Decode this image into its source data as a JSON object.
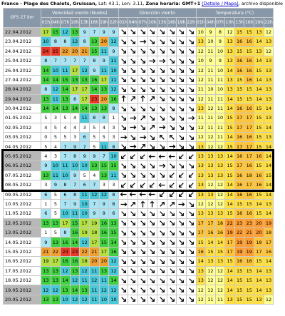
{
  "header": {
    "place": "France - Plage des Chalets, Gruissan,",
    "lat": "Lat: 43.1,",
    "lon": "Lon: 3.11,",
    "timezone": "Zona horaria: GMT+1",
    "links": "[Detalle / Mapa]",
    "file": ", archivo disponible"
  },
  "table": {
    "model": "GFS 27 km",
    "groups": [
      "Velocidad viento (Nudos)",
      "Dirección viento",
      "Temperatura (°C)"
    ],
    "hours": [
      "01h",
      "04h",
      "07h",
      "10h",
      "13h",
      "16h",
      "19h",
      "22h"
    ],
    "rows": [
      {
        "date": "22.04.2012",
        "wind": [
          17,
          15,
          12,
          13,
          9,
          7,
          9,
          9
        ],
        "dir": [
          135,
          135,
          135,
          135,
          135,
          135,
          135,
          135
        ],
        "temp": [
          10,
          9,
          8,
          12,
          15,
          15,
          13,
          12
        ]
      },
      {
        "date": "23.04.2012",
        "wind": [
          10,
          8,
          8,
          12,
          8,
          13,
          20,
          12
        ],
        "dir": [
          135,
          135,
          90,
          135,
          135,
          135,
          135,
          135
        ],
        "temp": [
          13,
          10,
          9,
          13,
          16,
          16,
          14,
          13
        ]
      },
      {
        "date": "24.04.2012",
        "wind": [
          24,
          25,
          22,
          20,
          21,
          15,
          11,
          9
        ],
        "dir": [
          135,
          135,
          135,
          135,
          135,
          135,
          135,
          135
        ],
        "temp": [
          12,
          11,
          10,
          13,
          15,
          15,
          13,
          12
        ]
      },
      {
        "date": "25.04.2012",
        "wind": [
          8,
          7,
          7,
          7,
          7,
          8,
          9,
          11
        ],
        "dir": [
          135,
          135,
          135,
          90,
          90,
          135,
          135,
          135
        ],
        "temp": [
          10,
          9,
          9,
          13,
          16,
          16,
          14,
          13
        ]
      },
      {
        "date": "26.04.2012",
        "wind": [
          14,
          10,
          11,
          17,
          12,
          9,
          11,
          10
        ],
        "dir": [
          135,
          135,
          135,
          135,
          135,
          135,
          135,
          135
        ],
        "temp": [
          12,
          11,
          10,
          14,
          16,
          16,
          15,
          13
        ]
      },
      {
        "date": "27.04.2012",
        "wind": [
          14,
          14,
          15,
          13,
          13,
          16,
          17,
          11
        ],
        "dir": [
          135,
          135,
          135,
          135,
          135,
          135,
          135,
          135
        ],
        "temp": [
          12,
          11,
          11,
          13,
          15,
          16,
          14,
          13
        ]
      },
      {
        "date": "28.04.2012",
        "wind": [
          8,
          12,
          14,
          17,
          17,
          14,
          13,
          12
        ],
        "dir": [
          135,
          135,
          135,
          135,
          135,
          135,
          135,
          135
        ],
        "temp": [
          11,
          10,
          10,
          13,
          15,
          15,
          14,
          13
        ]
      },
      {
        "date": "29.04.2012",
        "wind": [
          13,
          11,
          13,
          8,
          17,
          23,
          20,
          16
        ],
        "dir": [
          0,
          45,
          0,
          45,
          135,
          135,
          135,
          135
        ],
        "temp": [
          12,
          11,
          11,
          14,
          15,
          15,
          14,
          13
        ]
      },
      {
        "date": "30.04.2012",
        "wind": [
          14,
          14,
          13,
          14,
          14,
          13,
          13,
          8
        ],
        "dir": [
          135,
          135,
          135,
          135,
          135,
          135,
          135,
          135
        ],
        "temp": [
          13,
          12,
          11,
          14,
          16,
          16,
          15,
          14
        ]
      },
      {
        "date": "01.05.2012",
        "wind": [
          5,
          3,
          5,
          4,
          11,
          8,
          8,
          1
        ],
        "dir": [
          135,
          90,
          45,
          135,
          135,
          135,
          135,
          90
        ],
        "temp": [
          11,
          11,
          10,
          15,
          17,
          17,
          15,
          13
        ]
      },
      {
        "date": "02.05.2012",
        "wind": [
          4,
          5,
          4,
          4,
          3,
          5,
          4,
          3
        ],
        "dir": [
          135,
          90,
          135,
          45,
          90,
          135,
          135,
          135
        ],
        "temp": [
          12,
          11,
          11,
          15,
          17,
          17,
          15,
          14
        ]
      },
      {
        "date": "03.05.2012",
        "wind": [
          0,
          5,
          5,
          3,
          6,
          5,
          5,
          3
        ],
        "dir": [
          90,
          135,
          90,
          135,
          315,
          315,
          135,
          135
        ],
        "temp": [
          12,
          12,
          11,
          14,
          16,
          16,
          15,
          13
        ]
      },
      {
        "date": "04.05.2012",
        "wind": [
          5,
          4,
          7,
          9,
          7,
          5,
          11,
          8
        ],
        "dir": [
          135,
          90,
          45,
          135,
          135,
          90,
          135,
          135
        ],
        "temp": [
          13,
          12,
          12,
          15,
          17,
          17,
          15,
          14
        ]
      },
      {
        "date": "05.05.2012",
        "wind": [
          4,
          3,
          7,
          8,
          9,
          9,
          7,
          10
        ],
        "dir": [
          225,
          225,
          225,
          270,
          270,
          270,
          225,
          225
        ],
        "temp": [
          13,
          13,
          13,
          14,
          16,
          17,
          16,
          14
        ]
      },
      {
        "date": "06.05.2012",
        "wind": [
          9,
          10,
          11,
          10,
          10,
          13,
          15,
          15
        ],
        "dir": [
          135,
          135,
          135,
          135,
          90,
          135,
          135,
          135
        ],
        "temp": [
          13,
          13,
          13,
          15,
          17,
          16,
          15,
          14
        ]
      },
      {
        "date": "07.05.2012",
        "wind": [
          13,
          11,
          10,
          9,
          5,
          4,
          13,
          11
        ],
        "dir": [
          135,
          135,
          135,
          135,
          135,
          225,
          225,
          225
        ],
        "temp": [
          13,
          13,
          13,
          15,
          16,
          18,
          16,
          15
        ]
      },
      {
        "date": "08.05.2012",
        "wind": [
          3,
          9,
          8,
          7,
          6,
          7,
          3,
          3
        ],
        "dir": [
          225,
          225,
          225,
          225,
          270,
          225,
          225,
          225
        ],
        "temp": [
          13,
          12,
          12,
          14,
          16,
          17,
          16,
          14
        ]
      },
      {
        "date": "09.05.2012",
        "wind": [
          6,
          5,
          6,
          8,
          11,
          12,
          12,
          8
        ],
        "dir": [
          270,
          270,
          270,
          270,
          225,
          225,
          225,
          225
        ],
        "temp": [
          13,
          13,
          12,
          14,
          16,
          16,
          15,
          14
        ]
      },
      {
        "date": "10.05.2012",
        "wind": [
          1,
          5,
          7,
          9,
          10,
          7,
          9,
          8
        ],
        "dir": [
          90,
          45,
          0,
          0,
          45,
          45,
          90,
          135
        ],
        "temp": [
          12,
          12,
          12,
          14,
          15,
          15,
          14,
          13
        ]
      },
      {
        "date": "11.05.2012",
        "wind": [
          6,
          5,
          10,
          11,
          10,
          9,
          9,
          6
        ],
        "dir": [
          135,
          135,
          135,
          135,
          135,
          135,
          135,
          135
        ],
        "temp": [
          13,
          13,
          13,
          15,
          16,
          16,
          15,
          14
        ]
      },
      {
        "date": "12.05.2012",
        "wind": [
          13,
          13,
          17,
          15,
          17,
          19,
          16,
          13
        ],
        "dir": [
          135,
          135,
          135,
          135,
          135,
          135,
          135,
          135
        ],
        "temp": [
          17,
          17,
          18,
          22,
          23,
          23,
          20,
          19
        ]
      },
      {
        "date": "13.05.2012",
        "wind": [
          1,
          5,
          8,
          16,
          19,
          18,
          16,
          15
        ],
        "dir": [
          135,
          135,
          135,
          135,
          135,
          135,
          135,
          135
        ],
        "temp": [
          17,
          16,
          16,
          19,
          22,
          21,
          20,
          18
        ]
      },
      {
        "date": "14.05.2012",
        "wind": [
          9,
          13,
          16,
          14,
          12,
          17,
          15,
          14
        ],
        "dir": [
          135,
          135,
          135,
          135,
          135,
          135,
          135,
          135
        ],
        "temp": [
          15,
          14,
          14,
          17,
          19,
          19,
          18,
          17
        ]
      },
      {
        "date": "15.05.2012",
        "wind": [
          21,
          22,
          24,
          23,
          22,
          21,
          17,
          16
        ],
        "dir": [
          135,
          135,
          135,
          135,
          135,
          135,
          135,
          135
        ],
        "temp": [
          16,
          15,
          15,
          17,
          19,
          19,
          17,
          16
        ]
      },
      {
        "date": "16.05.2012",
        "wind": [
          19,
          17,
          16,
          16,
          18,
          20,
          20,
          12
        ],
        "dir": [
          135,
          135,
          135,
          135,
          135,
          135,
          135,
          135
        ],
        "temp": [
          14,
          13,
          13,
          15,
          16,
          16,
          15,
          14
        ]
      },
      {
        "date": "17.05.2012",
        "wind": [
          13,
          13,
          12,
          13,
          12,
          11,
          13,
          12
        ],
        "dir": [
          135,
          135,
          135,
          135,
          135,
          135,
          135,
          135
        ],
        "temp": [
          13,
          12,
          12,
          14,
          15,
          15,
          14,
          13
        ]
      },
      {
        "date": "18.05.2012",
        "wind": [
          13,
          13,
          14,
          12,
          11,
          12,
          11,
          14
        ],
        "dir": [
          135,
          135,
          135,
          135,
          135,
          135,
          135,
          135
        ],
        "temp": [
          13,
          12,
          12,
          14,
          15,
          15,
          14,
          13
        ]
      },
      {
        "date": "19.05.2012",
        "wind": [
          12,
          12,
          13,
          14,
          13,
          11,
          12,
          12
        ],
        "dir": [
          135,
          135,
          135,
          135,
          135,
          135,
          135,
          135
        ],
        "temp": [
          12,
          12,
          12,
          14,
          15,
          15,
          14,
          13
        ]
      },
      {
        "date": "20.05.2012",
        "wind": [
          13,
          13,
          10,
          12,
          12,
          11,
          10,
          10
        ],
        "dir": [
          135,
          135,
          135,
          135,
          135,
          135,
          135,
          135
        ],
        "temp": [
          12,
          11,
          11,
          13,
          15,
          15,
          13,
          12
        ]
      }
    ]
  }
}
